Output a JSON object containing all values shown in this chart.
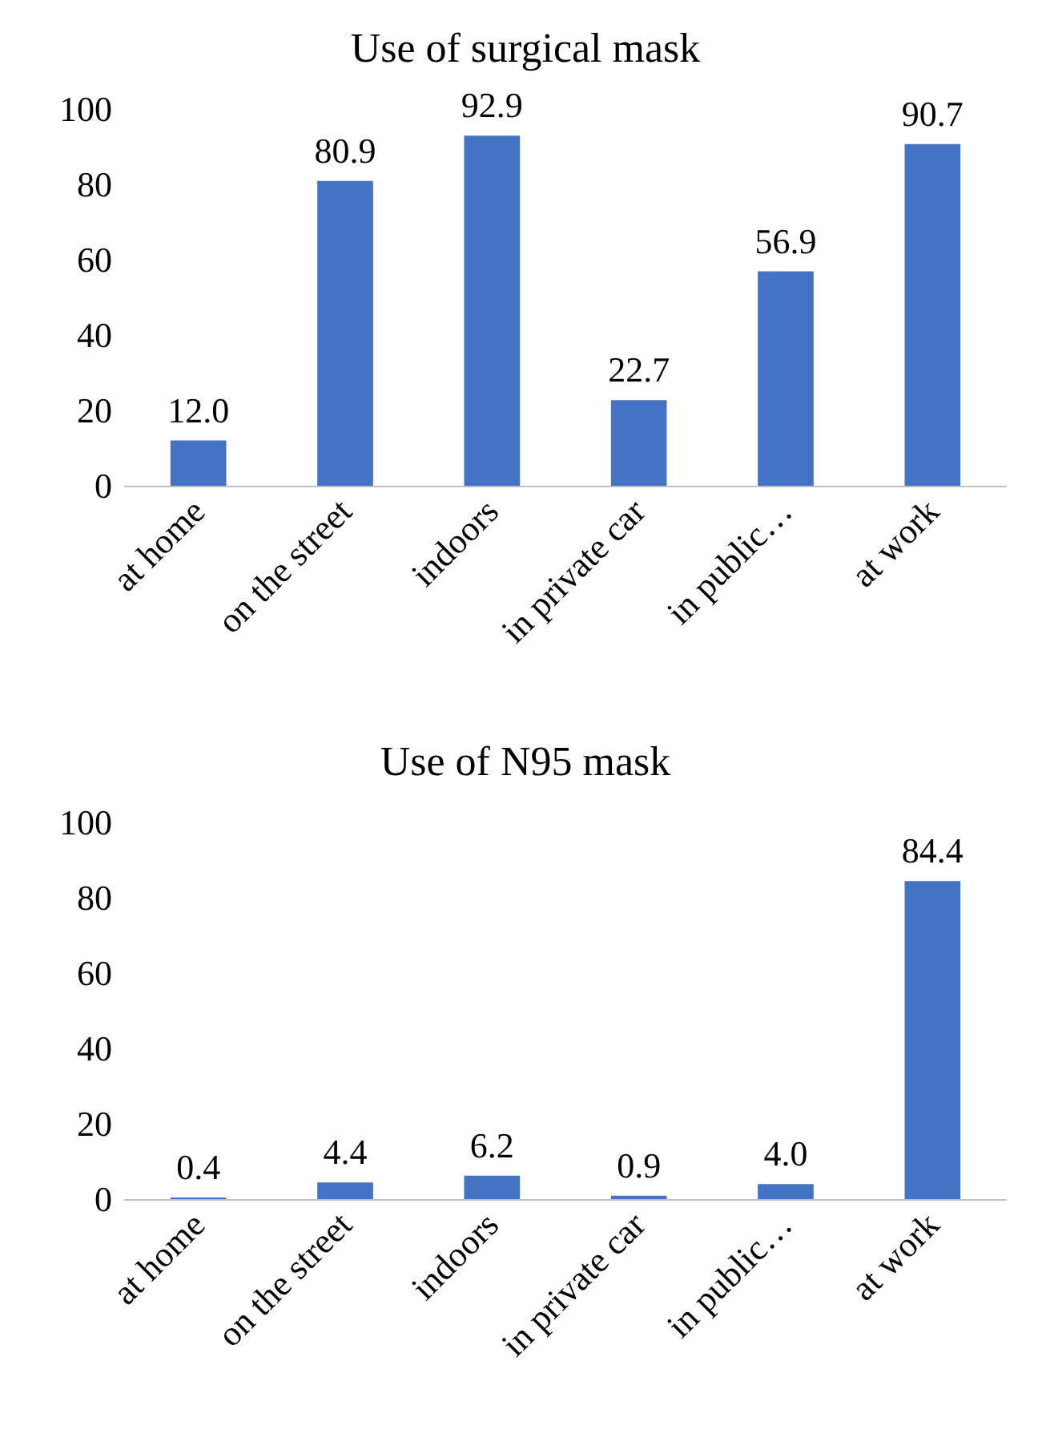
{
  "chart_data": [
    {
      "type": "bar",
      "title": "Use of surgical mask",
      "categories": [
        "at home",
        "on the street",
        "indoors",
        "in private car",
        "in public…",
        "at work"
      ],
      "values": [
        12.0,
        80.9,
        92.9,
        22.7,
        56.9,
        90.7
      ],
      "value_labels": [
        "12.0",
        "80.9",
        "92.9",
        "22.7",
        "56.9",
        "90.7"
      ],
      "color": "#4472c4",
      "ylim": [
        0,
        100
      ],
      "yticks": [
        0,
        20,
        40,
        60,
        80,
        100
      ],
      "grid": false
    },
    {
      "type": "bar",
      "title": "Use of N95 mask",
      "categories": [
        "at home",
        "on the street",
        "indoors",
        "in private car",
        "in public…",
        "at work"
      ],
      "values": [
        0.4,
        4.4,
        6.2,
        0.9,
        4.0,
        84.4
      ],
      "value_labels": [
        "0.4",
        "4.4",
        "6.2",
        "0.9",
        "4.0",
        "84.4"
      ],
      "color": "#4472c4",
      "ylim": [
        0,
        100
      ],
      "yticks": [
        0,
        20,
        40,
        60,
        80,
        100
      ],
      "grid": false
    }
  ]
}
